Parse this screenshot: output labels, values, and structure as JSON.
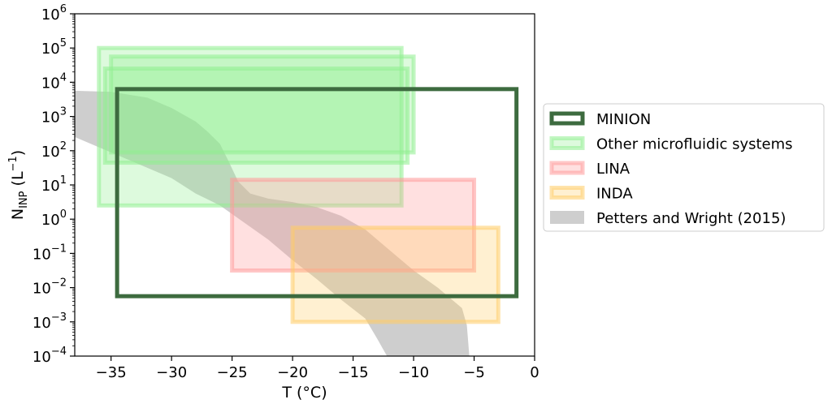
{
  "chart_data": {
    "type": "area",
    "xlabel": "T (°C)",
    "ylabel": {
      "base": "N",
      "sub": "INP",
      "unit": " (L",
      "sup": "−1",
      "close": ")"
    },
    "xlim": [
      -38,
      0
    ],
    "ylim_log10": [
      -4,
      6
    ],
    "y_scale": "log",
    "grid": false,
    "legend_placement": "center-right, outside plot",
    "x_ticks": [
      {
        "value": -35,
        "label": "−35"
      },
      {
        "value": -30,
        "label": "−30"
      },
      {
        "value": -25,
        "label": "−25"
      },
      {
        "value": -20,
        "label": "−20"
      },
      {
        "value": -15,
        "label": "−15"
      },
      {
        "value": -10,
        "label": "−10"
      },
      {
        "value": -5,
        "label": "−5"
      },
      {
        "value": 0,
        "label": "0"
      }
    ],
    "y_ticks": [
      {
        "exp": -4,
        "base": "10",
        "sup": "−4"
      },
      {
        "exp": -3,
        "base": "10",
        "sup": "−3"
      },
      {
        "exp": -2,
        "base": "10",
        "sup": "−2"
      },
      {
        "exp": -1,
        "base": "10",
        "sup": "−1"
      },
      {
        "exp": 0,
        "base": "10",
        "sup": "0"
      },
      {
        "exp": 1,
        "base": "10",
        "sup": "1"
      },
      {
        "exp": 2,
        "base": "10",
        "sup": "2"
      },
      {
        "exp": 3,
        "base": "10",
        "sup": "3"
      },
      {
        "exp": 4,
        "base": "10",
        "sup": "4"
      },
      {
        "exp": 5,
        "base": "10",
        "sup": "5"
      },
      {
        "exp": 6,
        "base": "10",
        "sup": "6"
      }
    ],
    "series": [
      {
        "name": "Petters and Wright (2015)",
        "kind": "band",
        "color": "#bdbdbd",
        "upper": [
          [
            -38,
            3.75
          ],
          [
            -35,
            3.72
          ],
          [
            -32,
            3.55
          ],
          [
            -30,
            3.25
          ],
          [
            -28,
            2.85
          ],
          [
            -27,
            2.55
          ],
          [
            -26,
            2.2
          ],
          [
            -25.3,
            1.7
          ],
          [
            -24.5,
            1.1
          ],
          [
            -23.5,
            0.75
          ],
          [
            -22,
            0.6
          ],
          [
            -20,
            0.5
          ],
          [
            -18,
            0.35
          ],
          [
            -16,
            0.1
          ],
          [
            -14,
            -0.3
          ],
          [
            -12,
            -0.9
          ],
          [
            -10,
            -1.5
          ],
          [
            -8,
            -2.0
          ],
          [
            -7,
            -2.3
          ],
          [
            -6,
            -2.6
          ],
          [
            -5.6,
            -3.1
          ],
          [
            -5.4,
            -4.0
          ]
        ],
        "lower": [
          [
            -38,
            2.4
          ],
          [
            -35,
            1.95
          ],
          [
            -32,
            1.5
          ],
          [
            -30,
            1.2
          ],
          [
            -28,
            0.75
          ],
          [
            -26,
            0.4
          ],
          [
            -24,
            -0.1
          ],
          [
            -22,
            -0.6
          ],
          [
            -20,
            -1.2
          ],
          [
            -18,
            -1.75
          ],
          [
            -16,
            -2.35
          ],
          [
            -14,
            -2.9
          ],
          [
            -13,
            -3.5
          ],
          [
            -12.2,
            -4.0
          ]
        ]
      },
      {
        "name": "Other microfluidic systems",
        "kind": "boxes",
        "color": "#90ee90",
        "boxes": [
          {
            "xmin": -36.0,
            "xmax": -11.0,
            "ymin_log10": 0.4,
            "ymax_log10": 5.0
          },
          {
            "xmin": -35.0,
            "xmax": -10.0,
            "ymin_log10": 1.95,
            "ymax_log10": 4.75
          },
          {
            "xmin": -35.5,
            "xmax": -10.5,
            "ymin_log10": 1.65,
            "ymax_log10": 4.4
          }
        ]
      },
      {
        "name": "LINA",
        "kind": "boxes",
        "color": "#ff9999",
        "boxes": [
          {
            "xmin": -25.0,
            "xmax": -5.0,
            "ymin_log10": -1.5,
            "ymax_log10": 1.15
          }
        ]
      },
      {
        "name": "INDA",
        "kind": "boxes",
        "color": "#ffcc66",
        "boxes": [
          {
            "xmin": -20.0,
            "xmax": -3.0,
            "ymin_log10": -3.0,
            "ymax_log10": -0.25
          }
        ]
      },
      {
        "name": "MINION",
        "kind": "boxes",
        "color": "#3d6b3f",
        "boxes": [
          {
            "xmin": -34.5,
            "xmax": -1.5,
            "ymin_log10": -2.25,
            "ymax_log10": 3.8
          }
        ]
      }
    ],
    "legend": [
      {
        "label": "MINION",
        "style": "outline",
        "color": "#3d6b3f"
      },
      {
        "label": "Other microfluidic systems",
        "style": "fill",
        "color": "#90ee90"
      },
      {
        "label": "LINA",
        "style": "fill",
        "color": "#ff9999"
      },
      {
        "label": "INDA",
        "style": "fill",
        "color": "#ffcc66"
      },
      {
        "label": "Petters and Wright (2015)",
        "style": "solid",
        "color": "#bdbdbd"
      }
    ]
  }
}
